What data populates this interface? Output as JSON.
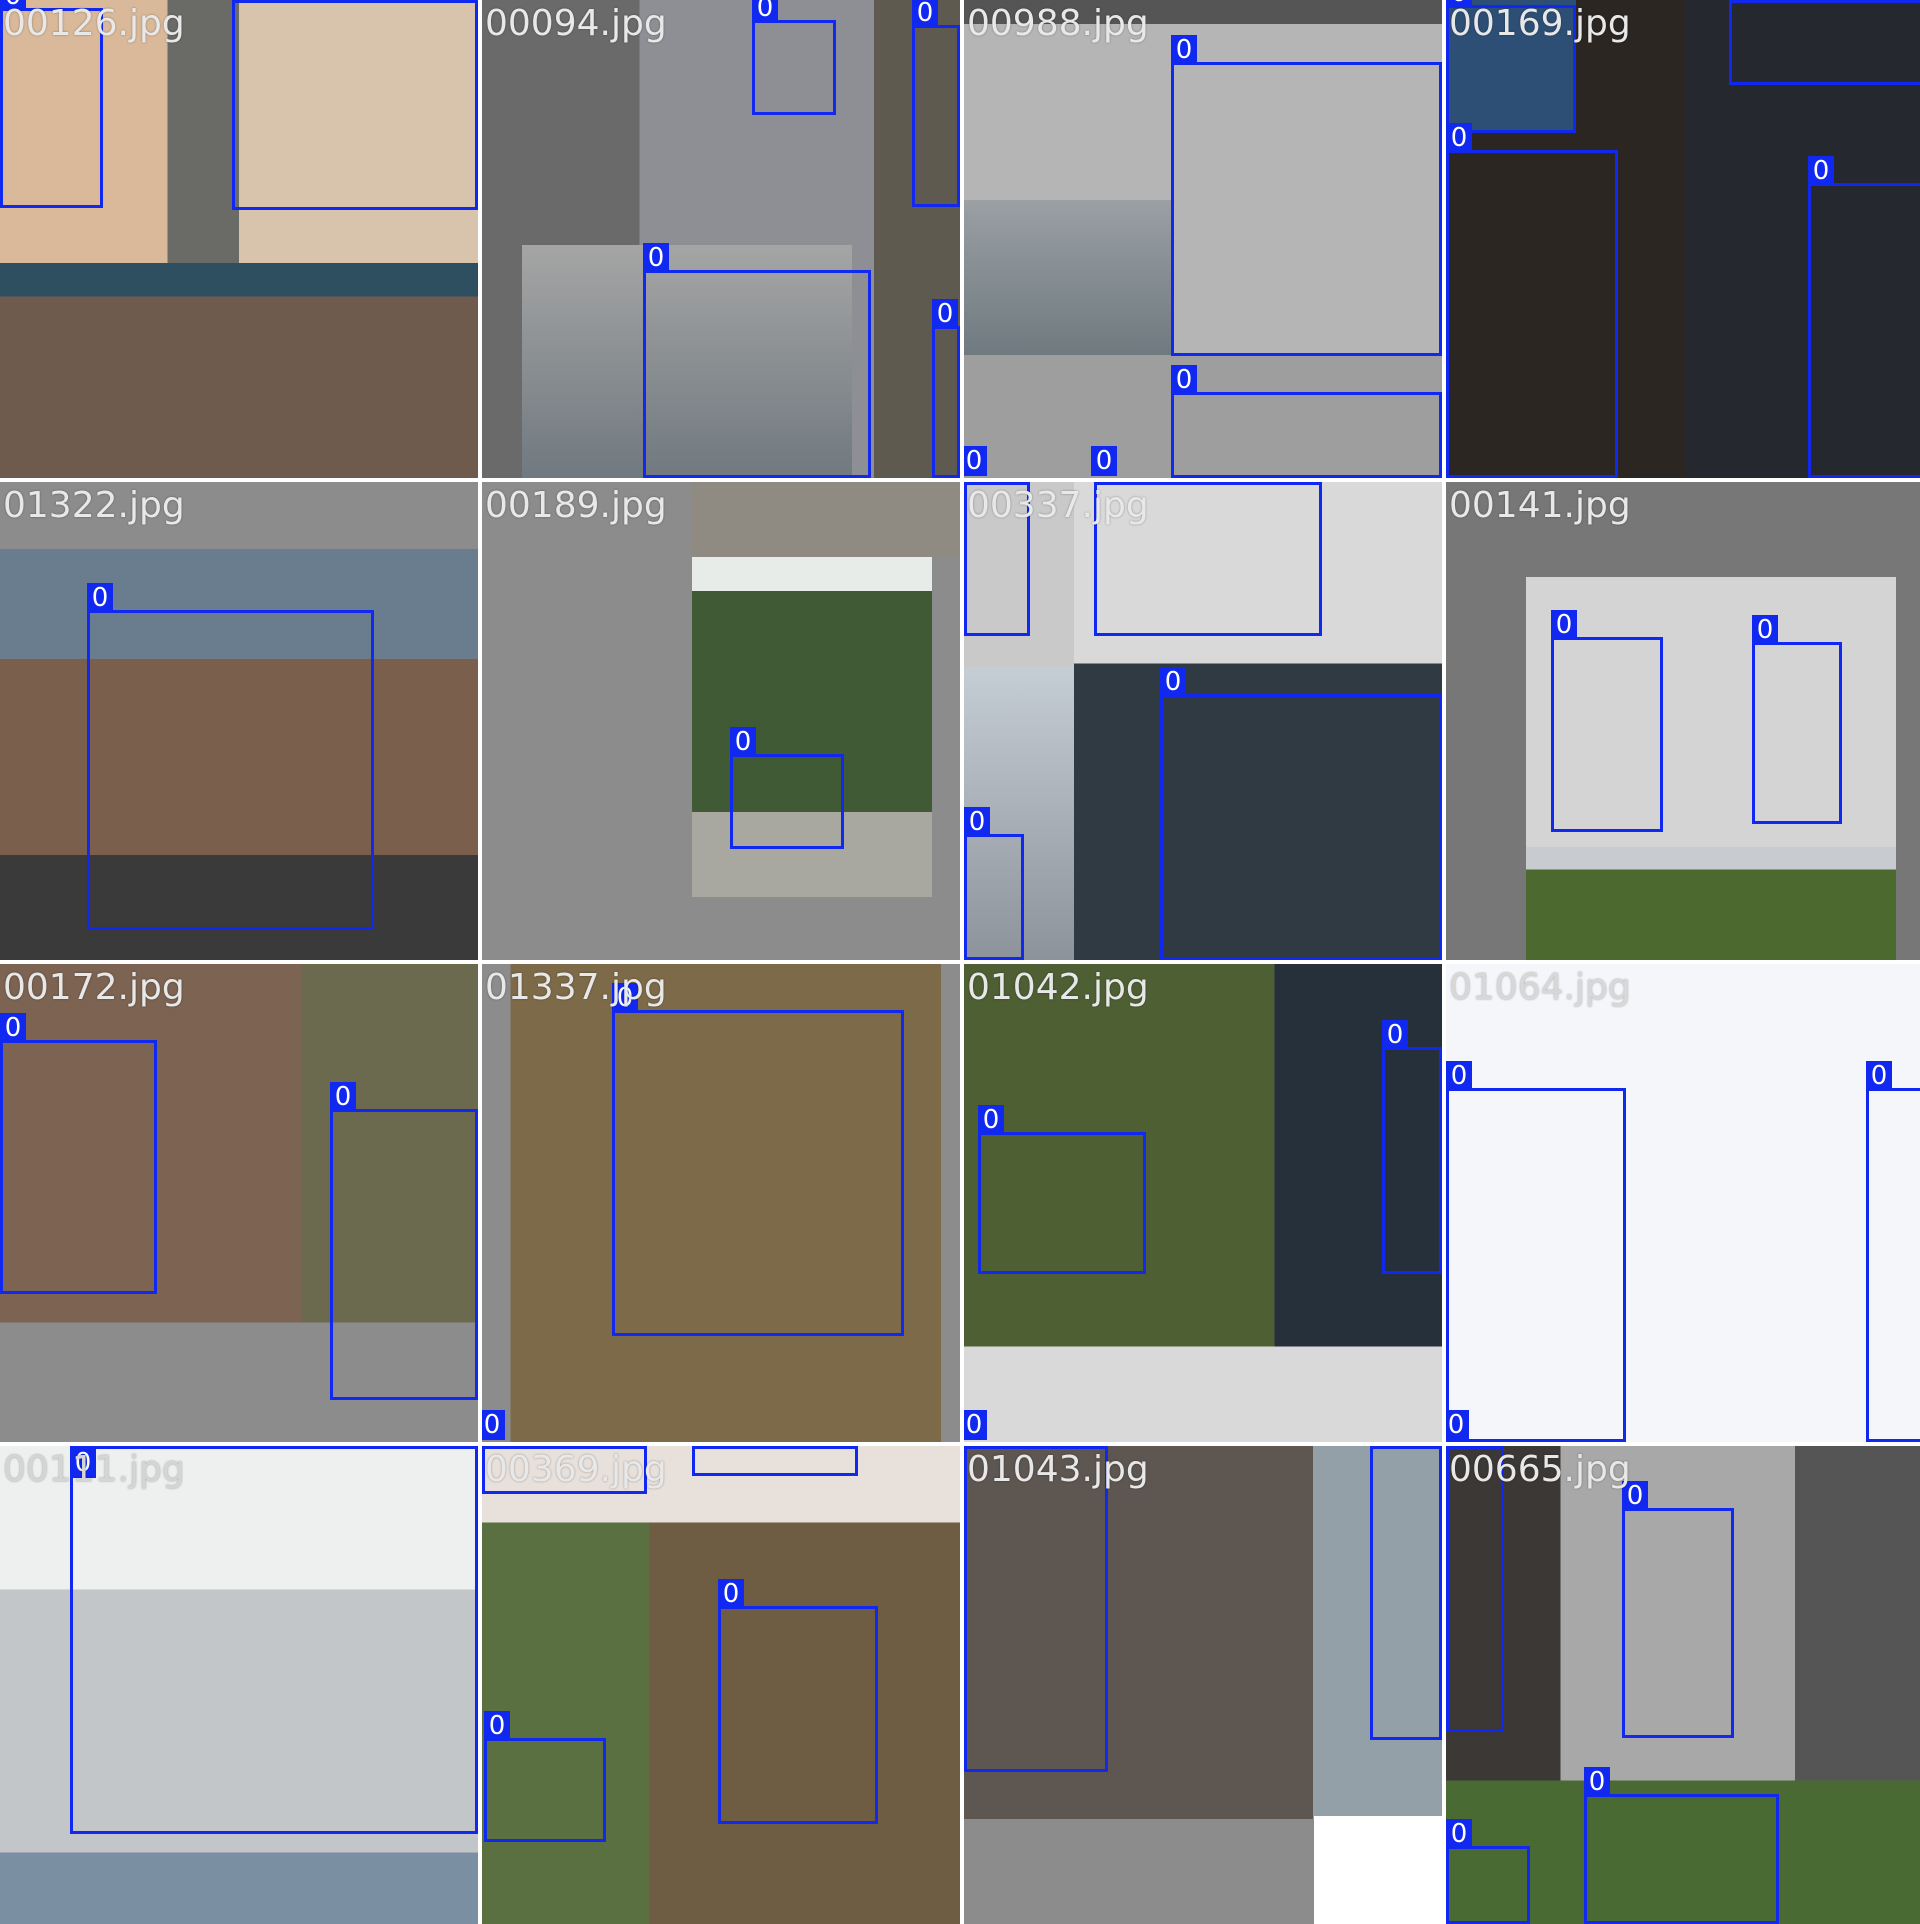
{
  "box_color": "#1028f0",
  "label_text_color": "#ffffff",
  "tiles": [
    {
      "filename": "00126.jpg",
      "class_labels": [
        "0",
        "0"
      ]
    },
    {
      "filename": "00094.jpg",
      "class_labels": [
        "0",
        "0",
        "0",
        "0"
      ]
    },
    {
      "filename": "00988.jpg",
      "class_labels": [
        "0",
        "0",
        "0",
        "0"
      ]
    },
    {
      "filename": "00169.jpg",
      "class_labels": [
        "0",
        "0",
        "0",
        "0"
      ]
    },
    {
      "filename": "01322.jpg",
      "class_labels": [
        "0"
      ]
    },
    {
      "filename": "00189.jpg",
      "class_labels": [
        "0"
      ]
    },
    {
      "filename": "00337.jpg",
      "class_labels": [
        "0",
        "0",
        "0",
        "0"
      ]
    },
    {
      "filename": "00141.jpg",
      "class_labels": [
        "0",
        "0"
      ]
    },
    {
      "filename": "00172.jpg",
      "class_labels": [
        "0",
        "0"
      ]
    },
    {
      "filename": "01337.jpg",
      "class_labels": [
        "0",
        "0"
      ]
    },
    {
      "filename": "01042.jpg",
      "class_labels": [
        "0",
        "0",
        "0"
      ]
    },
    {
      "filename": "01064.jpg",
      "class_labels": [
        "0",
        "0",
        "0"
      ]
    },
    {
      "filename": "00111.jpg",
      "class_labels": [
        "0"
      ]
    },
    {
      "filename": "00369.jpg",
      "class_labels": [
        "0",
        "0",
        "0",
        "0"
      ]
    },
    {
      "filename": "01043.jpg",
      "class_labels": [
        "0",
        "0"
      ]
    },
    {
      "filename": "00665.jpg",
      "class_labels": [
        "0",
        "0",
        "0",
        "0"
      ]
    }
  ]
}
